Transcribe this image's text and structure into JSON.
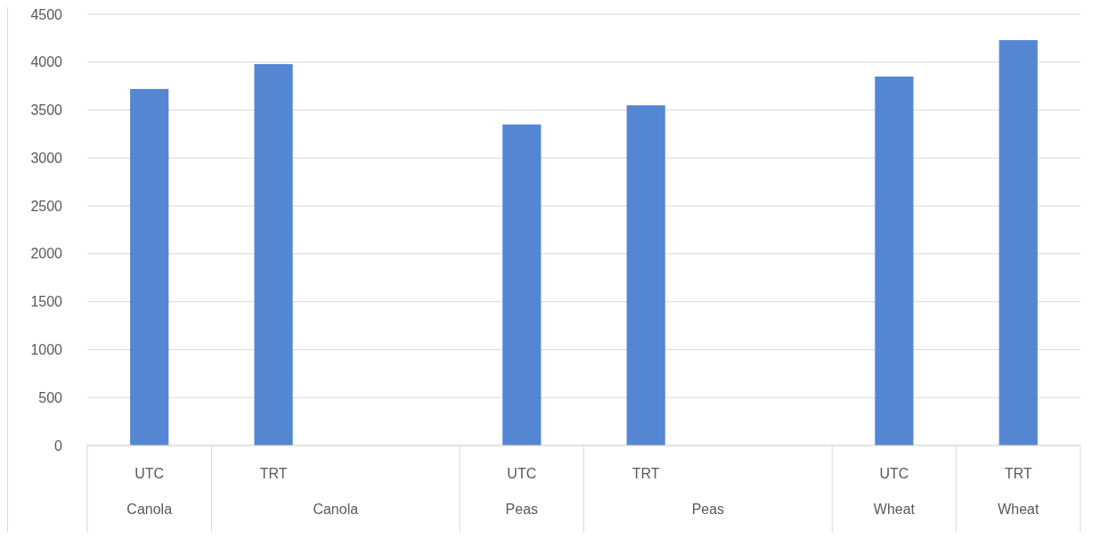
{
  "chart_data": {
    "type": "bar",
    "categories": [
      "UTC\nCanola",
      "TRT\nCanola",
      null,
      "UTC\nPeas",
      "TRT\nPeas",
      null,
      "UTC\nWheat",
      "TRT\nWheat"
    ],
    "values": [
      3720,
      3980,
      null,
      3350,
      3550,
      null,
      3850,
      4230
    ],
    "color": "#5586d2",
    "ylim": [
      0,
      4500
    ],
    "yticks": [
      0,
      500,
      1000,
      1500,
      2000,
      2500,
      3000,
      3500,
      4000,
      4500
    ],
    "grid": "y"
  }
}
